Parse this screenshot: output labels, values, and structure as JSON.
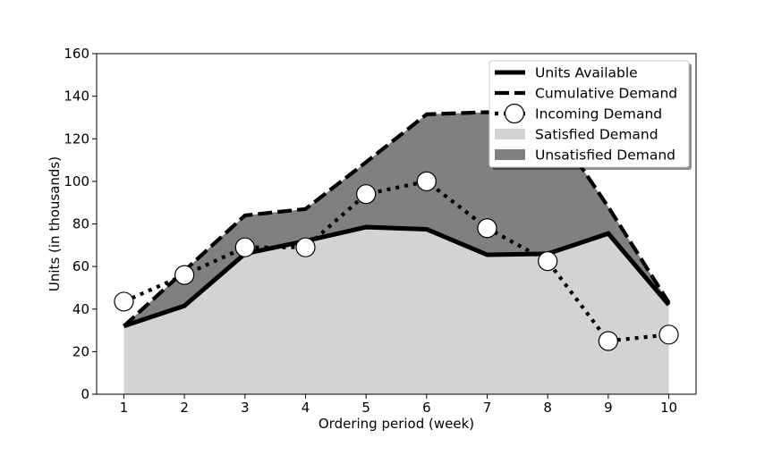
{
  "chart_data": {
    "type": "area",
    "xlabel": "Ordering period (week)",
    "ylabel": "Units (in thousands)",
    "xlim": [
      0.55,
      10.45
    ],
    "ylim": [
      0,
      160
    ],
    "x": [
      1,
      2,
      3,
      4,
      5,
      6,
      7,
      8,
      9,
      10
    ],
    "xticks": [
      1,
      2,
      3,
      4,
      5,
      6,
      7,
      8,
      9,
      10
    ],
    "yticks": [
      0,
      20,
      40,
      60,
      80,
      100,
      120,
      140,
      160
    ],
    "grid": false,
    "legend_position": "top-right",
    "series": [
      {
        "name": "Units Available",
        "style": "solid",
        "values": [
          32,
          41.5,
          66,
          72,
          78.5,
          77.5,
          65.5,
          66,
          75.5,
          42
        ]
      },
      {
        "name": "Cumulative Demand",
        "style": "dashed",
        "values": [
          32,
          58,
          84,
          87,
          109,
          131.5,
          132.5,
          130,
          88,
          43
        ]
      },
      {
        "name": "Incoming Demand",
        "style": "dotted-circle-markers",
        "values": [
          43.5,
          56,
          69,
          69,
          94,
          100,
          78,
          62.5,
          25,
          28
        ]
      }
    ],
    "fills": [
      {
        "name": "Satisfied Demand",
        "color": "#d3d3d3",
        "between": [
          "baseline",
          "Units Available"
        ]
      },
      {
        "name": "Unsatisfied Demand",
        "color": "#808080",
        "between": [
          "Units Available",
          "Cumulative Demand"
        ]
      }
    ]
  }
}
